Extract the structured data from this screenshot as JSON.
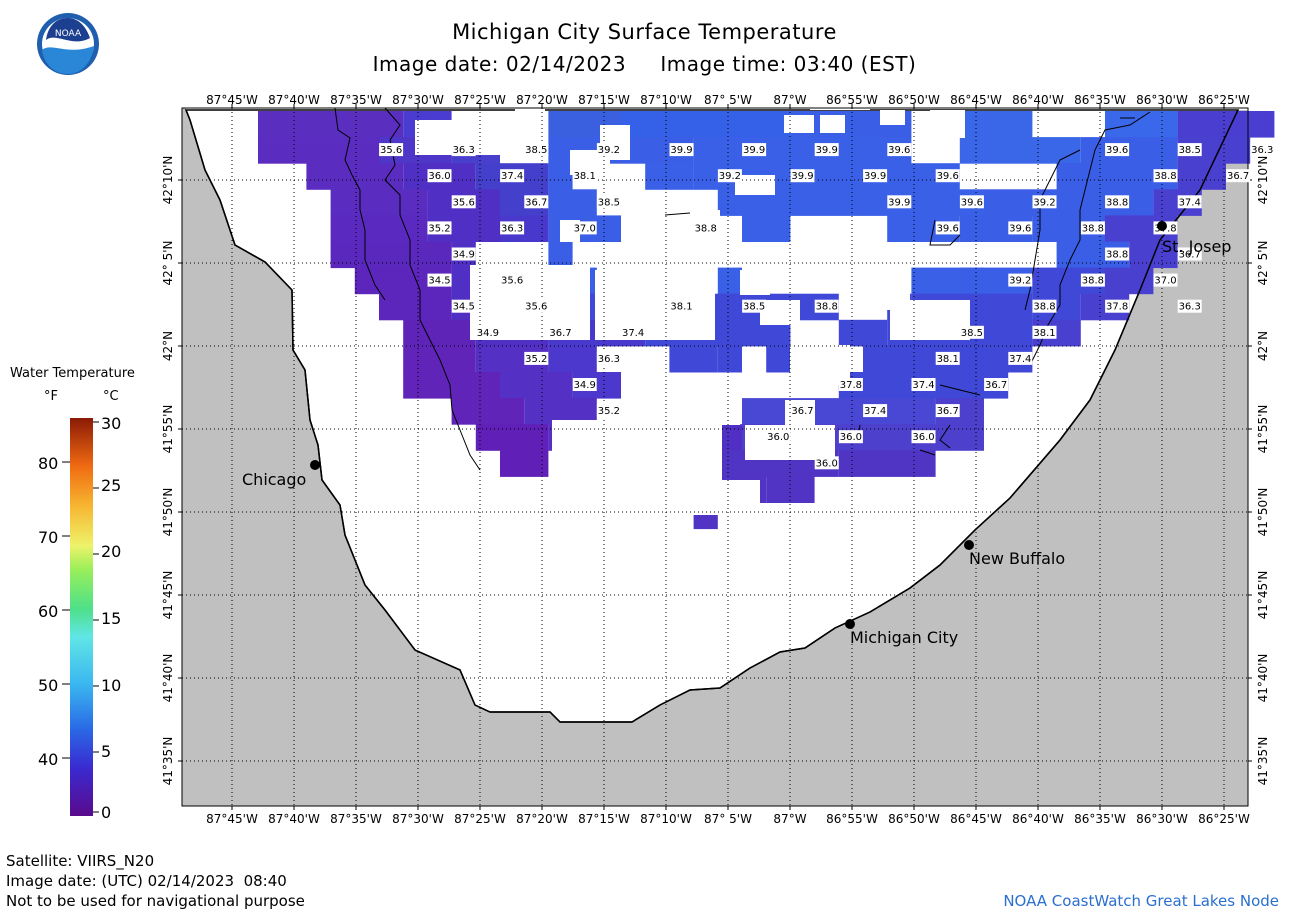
{
  "header": {
    "title": "Michigan City Surface Temperature",
    "subtitle": "Image date: 02/14/2023     Image time: 03:40 (EST)",
    "logo_text": "NOAA"
  },
  "axes": {
    "lon_labels": [
      "87°45'W",
      "87°40'W",
      "87°35'W",
      "87°30'W",
      "87°25'W",
      "87°20'W",
      "87°15'W",
      "87°10'W",
      "87° 5'W",
      "87°W",
      "86°55'W",
      "86°50'W",
      "86°45'W",
      "86°40'W",
      "86°35'W",
      "86°30'W",
      "86°25'W"
    ],
    "lat_labels": [
      "42°10'N",
      "42° 5'N",
      "42°N",
      "41°55'N",
      "41°50'N",
      "41°45'N",
      "41°40'N",
      "41°35'N"
    ]
  },
  "cities": [
    {
      "name": "Chicago"
    },
    {
      "name": "St. Josep"
    },
    {
      "name": "New Buffalo"
    },
    {
      "name": "Michigan City"
    }
  ],
  "temperature_labels": [
    {
      "v": "35.6",
      "col": 5,
      "row": 1
    },
    {
      "v": "36.3",
      "col": 8,
      "row": 1
    },
    {
      "v": "38.5",
      "col": 11,
      "row": 1
    },
    {
      "v": "39.2",
      "col": 14,
      "row": 1
    },
    {
      "v": "39.9",
      "col": 17,
      "row": 1
    },
    {
      "v": "39.9",
      "col": 20,
      "row": 1
    },
    {
      "v": "39.9",
      "col": 23,
      "row": 1
    },
    {
      "v": "39.6",
      "col": 26,
      "row": 1
    },
    {
      "v": "39.6",
      "col": 35,
      "row": 1
    },
    {
      "v": "38.5",
      "col": 38,
      "row": 1
    },
    {
      "v": "36.3",
      "col": 41,
      "row": 1
    },
    {
      "v": "36.0",
      "col": 7,
      "row": 2
    },
    {
      "v": "37.4",
      "col": 10,
      "row": 2
    },
    {
      "v": "38.1",
      "col": 13,
      "row": 2
    },
    {
      "v": "39.2",
      "col": 19,
      "row": 2
    },
    {
      "v": "39.9",
      "col": 22,
      "row": 2
    },
    {
      "v": "39.9",
      "col": 25,
      "row": 2
    },
    {
      "v": "39.6",
      "col": 28,
      "row": 2
    },
    {
      "v": "38.8",
      "col": 37,
      "row": 2
    },
    {
      "v": "36.7",
      "col": 40,
      "row": 2
    },
    {
      "v": "35.6",
      "col": 8,
      "row": 3
    },
    {
      "v": "36.7",
      "col": 11,
      "row": 3
    },
    {
      "v": "38.5",
      "col": 14,
      "row": 3
    },
    {
      "v": "39.9",
      "col": 26,
      "row": 3
    },
    {
      "v": "39.6",
      "col": 29,
      "row": 3
    },
    {
      "v": "39.2",
      "col": 32,
      "row": 3
    },
    {
      "v": "38.8",
      "col": 35,
      "row": 3
    },
    {
      "v": "37.4",
      "col": 38,
      "row": 3
    },
    {
      "v": "35.2",
      "col": 7,
      "row": 4
    },
    {
      "v": "36.3",
      "col": 10,
      "row": 4
    },
    {
      "v": "37.0",
      "col": 13,
      "row": 4
    },
    {
      "v": "38.8",
      "col": 18,
      "row": 4
    },
    {
      "v": "39.6",
      "col": 28,
      "row": 4
    },
    {
      "v": "39.6",
      "col": 31,
      "row": 4
    },
    {
      "v": "38.8",
      "col": 34,
      "row": 4
    },
    {
      "v": "37.8",
      "col": 37,
      "row": 4
    },
    {
      "v": "34.9",
      "col": 8,
      "row": 5
    },
    {
      "v": "38.8",
      "col": 35,
      "row": 5
    },
    {
      "v": "36.7",
      "col": 38,
      "row": 5
    },
    {
      "v": "34.5",
      "col": 7,
      "row": 6
    },
    {
      "v": "35.6",
      "col": 10,
      "row": 6
    },
    {
      "v": "39.2",
      "col": 31,
      "row": 6
    },
    {
      "v": "38.8",
      "col": 34,
      "row": 6
    },
    {
      "v": "37.0",
      "col": 37,
      "row": 6
    },
    {
      "v": "34.5",
      "col": 8,
      "row": 7
    },
    {
      "v": "35.6",
      "col": 11,
      "row": 7
    },
    {
      "v": "38.1",
      "col": 17,
      "row": 7
    },
    {
      "v": "38.5",
      "col": 20,
      "row": 7
    },
    {
      "v": "38.8",
      "col": 23,
      "row": 7
    },
    {
      "v": "38.8",
      "col": 32,
      "row": 7
    },
    {
      "v": "37.8",
      "col": 35,
      "row": 7
    },
    {
      "v": "36.3",
      "col": 38,
      "row": 7
    },
    {
      "v": "34.9",
      "col": 9,
      "row": 8
    },
    {
      "v": "36.7",
      "col": 12,
      "row": 8
    },
    {
      "v": "37.4",
      "col": 15,
      "row": 8
    },
    {
      "v": "38.5",
      "col": 29,
      "row": 8
    },
    {
      "v": "38.1",
      "col": 32,
      "row": 8
    },
    {
      "v": "35.2",
      "col": 11,
      "row": 9
    },
    {
      "v": "36.3",
      "col": 14,
      "row": 9
    },
    {
      "v": "38.1",
      "col": 28,
      "row": 9
    },
    {
      "v": "37.4",
      "col": 31,
      "row": 9
    },
    {
      "v": "34.9",
      "col": 13,
      "row": 10
    },
    {
      "v": "37.8",
      "col": 24,
      "row": 10
    },
    {
      "v": "37.4",
      "col": 27,
      "row": 10
    },
    {
      "v": "36.7",
      "col": 30,
      "row": 10
    },
    {
      "v": "35.2",
      "col": 14,
      "row": 11
    },
    {
      "v": "36.7",
      "col": 22,
      "row": 11
    },
    {
      "v": "37.4",
      "col": 25,
      "row": 11
    },
    {
      "v": "36.7",
      "col": 28,
      "row": 11
    },
    {
      "v": "36.0",
      "col": 21,
      "row": 12
    },
    {
      "v": "36.0",
      "col": 24,
      "row": 12
    },
    {
      "v": "36.0",
      "col": 27,
      "row": 12
    },
    {
      "v": "36.0",
      "col": 23,
      "row": 13
    }
  ],
  "legend": {
    "title": "Water Temperature",
    "unit_f": "°F",
    "unit_c": "°C",
    "f_ticks": [
      "80",
      "70",
      "60",
      "50",
      "40"
    ],
    "c_ticks": [
      "30",
      "25",
      "20",
      "15",
      "10",
      "5",
      "0"
    ]
  },
  "footer": {
    "satellite": "Satellite: VIIRS_N20",
    "image_date_utc": "Image date: (UTC) 02/14/2023  08:40",
    "disclaimer": "Not to be used for navigational purpose",
    "credit": "NOAA CoastWatch Great Lakes Node"
  },
  "colors": {
    "land": "#c0c0c0",
    "water_cloud": "#ffffff",
    "coast": "#000000",
    "credit": "#2a6fd0"
  }
}
